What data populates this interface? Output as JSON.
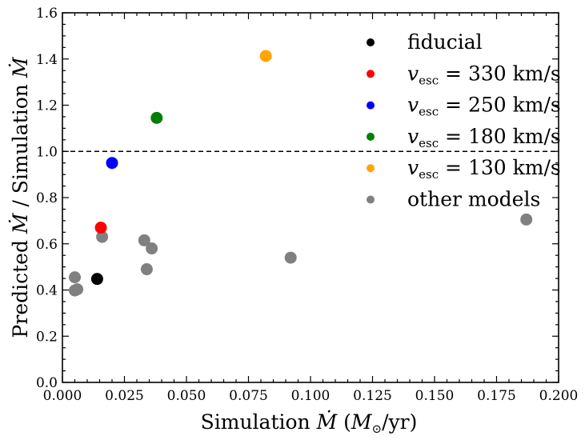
{
  "chart_data": {
    "type": "scatter",
    "xlabel": "Simulation Ṁ (M⊙/yr)",
    "ylabel": "Predicted Ṁ / Simulation Ṁ",
    "xlim": [
      0.0,
      0.2
    ],
    "ylim": [
      0.0,
      1.6
    ],
    "x_ticks": [
      "0.000",
      "0.025",
      "0.050",
      "0.075",
      "0.100",
      "0.125",
      "0.150",
      "0.175",
      "0.200"
    ],
    "y_ticks": [
      "0.0",
      "0.2",
      "0.4",
      "0.6",
      "0.8",
      "1.0",
      "1.2",
      "1.4",
      "1.6"
    ],
    "grid": false,
    "legend_position": "top-right",
    "reference_line": {
      "y": 1.0,
      "style": "dashed",
      "color": "#000000"
    },
    "series": [
      {
        "name": "other models",
        "color": "#808080",
        "points": [
          [
            0.005,
            0.455
          ],
          [
            0.005,
            0.398
          ],
          [
            0.006,
            0.403
          ],
          [
            0.016,
            0.63
          ],
          [
            0.033,
            0.615
          ],
          [
            0.034,
            0.49
          ],
          [
            0.036,
            0.58
          ],
          [
            0.092,
            0.54
          ],
          [
            0.187,
            0.705
          ]
        ]
      },
      {
        "name": "fiducial",
        "color": "#000000",
        "points": [
          [
            0.014,
            0.448
          ]
        ]
      },
      {
        "name": "v_esc = 330 km/s",
        "color": "#ff0000",
        "points": [
          [
            0.0155,
            0.67
          ]
        ]
      },
      {
        "name": "v_esc = 250 km/s",
        "color": "#0000ff",
        "points": [
          [
            0.02,
            0.95
          ]
        ]
      },
      {
        "name": "v_esc = 180 km/s",
        "color": "#008000",
        "points": [
          [
            0.038,
            1.145
          ]
        ]
      },
      {
        "name": "v_esc = 130 km/s",
        "color": "#ffa500",
        "points": [
          [
            0.082,
            1.413
          ]
        ]
      }
    ],
    "legend": [
      {
        "color": "#000000",
        "label": "fiducial"
      },
      {
        "color": "#ff0000",
        "math": true,
        "v": "v",
        "sub": "esc",
        "rest": " = 330 km/s"
      },
      {
        "color": "#0000ff",
        "math": true,
        "v": "v",
        "sub": "esc",
        "rest": " = 250 km/s"
      },
      {
        "color": "#008000",
        "math": true,
        "v": "v",
        "sub": "esc",
        "rest": " = 180 km/s"
      },
      {
        "color": "#ffa500",
        "math": true,
        "v": "v",
        "sub": "esc",
        "rest": " = 130 km/s"
      },
      {
        "color": "#808080",
        "label": "other models"
      }
    ]
  }
}
